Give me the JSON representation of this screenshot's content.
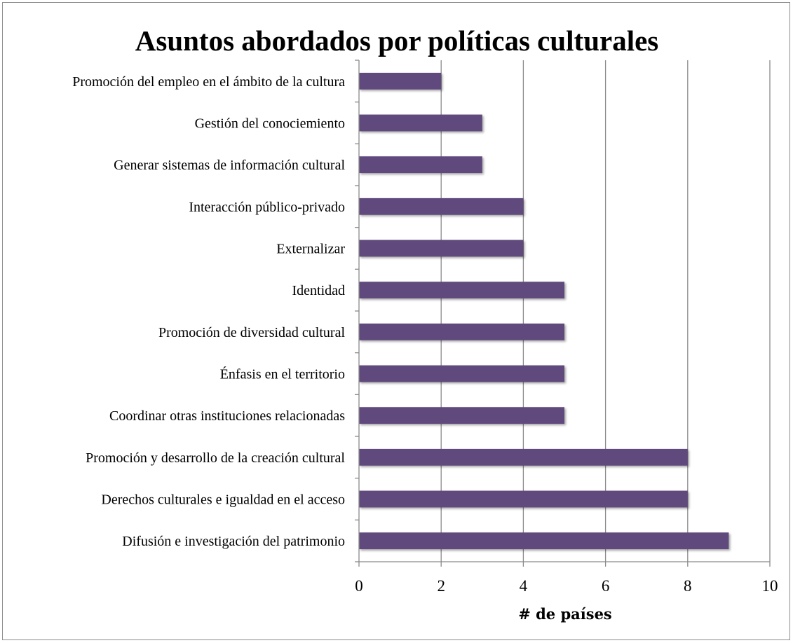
{
  "chart_data": {
    "type": "bar",
    "orientation": "horizontal",
    "title": "Asuntos abordados por políticas culturales",
    "xlabel": "# de países",
    "ylabel": "",
    "xlim": [
      0,
      10
    ],
    "xticks": [
      0,
      2,
      4,
      6,
      8,
      10
    ],
    "grid": true,
    "legend": "none",
    "bar_color": "#604a7b",
    "categories": [
      "Promoción del empleo en el ámbito de la cultura",
      "Gestión del conociemiento",
      "Generar sistemas de información cultural",
      "Interacción público-privado",
      "Externalizar",
      "Identidad",
      "Promoción de diversidad cultural",
      "Énfasis en el territorio",
      "Coordinar otras instituciones relacionadas",
      "Promoción y desarrollo de la creación cultural",
      "Derechos culturales e igualdad en el acceso",
      "Difusión e investigación del patrimonio"
    ],
    "values": [
      2,
      3,
      3,
      4,
      4,
      5,
      5,
      5,
      5,
      8,
      8,
      9
    ]
  }
}
